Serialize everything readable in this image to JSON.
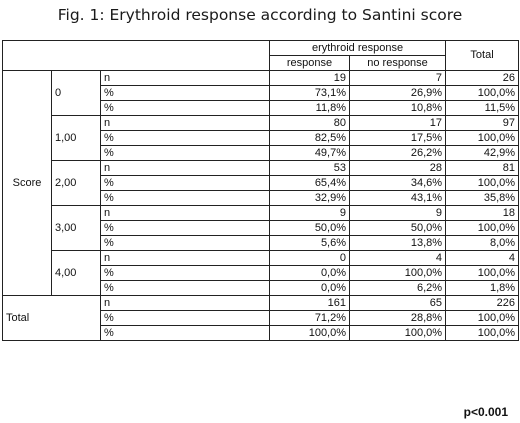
{
  "title": "Fig. 1: Erythroid response according to Santini score",
  "header": {
    "group_label": "erythroid response",
    "col_response": "response",
    "col_no_response": "no response",
    "col_total": "Total"
  },
  "row_group_label": "Score",
  "total_label": "Total",
  "groups": [
    {
      "score": "0",
      "rows": [
        {
          "stat": "n",
          "response": "19",
          "no_response": "7",
          "total": "26"
        },
        {
          "stat": "%",
          "response": "73,1%",
          "no_response": "26,9%",
          "total": "100,0%"
        },
        {
          "stat": "%",
          "response": "11,8%",
          "no_response": "10,8%",
          "total": "11,5%"
        }
      ]
    },
    {
      "score": "1,00",
      "rows": [
        {
          "stat": "n",
          "response": "80",
          "no_response": "17",
          "total": "97"
        },
        {
          "stat": "%",
          "response": "82,5%",
          "no_response": "17,5%",
          "total": "100,0%"
        },
        {
          "stat": "%",
          "response": "49,7%",
          "no_response": "26,2%",
          "total": "42,9%"
        }
      ]
    },
    {
      "score": "2,00",
      "rows": [
        {
          "stat": "n",
          "response": "53",
          "no_response": "28",
          "total": "81"
        },
        {
          "stat": "%",
          "response": "65,4%",
          "no_response": "34,6%",
          "total": "100,0%"
        },
        {
          "stat": "%",
          "response": "32,9%",
          "no_response": "43,1%",
          "total": "35,8%"
        }
      ]
    },
    {
      "score": "3,00",
      "rows": [
        {
          "stat": "n",
          "response": "9",
          "no_response": "9",
          "total": "18"
        },
        {
          "stat": "%",
          "response": "50,0%",
          "no_response": "50,0%",
          "total": "100,0%"
        },
        {
          "stat": "%",
          "response": "5,6%",
          "no_response": "13,8%",
          "total": "8,0%"
        }
      ]
    },
    {
      "score": "4,00",
      "rows": [
        {
          "stat": "n",
          "response": "0",
          "no_response": "4",
          "total": "4"
        },
        {
          "stat": "%",
          "response": "0,0%",
          "no_response": "100,0%",
          "total": "100,0%"
        },
        {
          "stat": "%",
          "response": "0,0%",
          "no_response": "6,2%",
          "total": "1,8%"
        }
      ]
    }
  ],
  "total_rows": [
    {
      "stat": "n",
      "response": "161",
      "no_response": "65",
      "total": "226"
    },
    {
      "stat": "%",
      "response": "71,2%",
      "no_response": "28,8%",
      "total": "100,0%"
    },
    {
      "stat": "%",
      "response": "100,0%",
      "no_response": "100,0%",
      "total": "100,0%"
    }
  ],
  "p_value": "p<0.001"
}
